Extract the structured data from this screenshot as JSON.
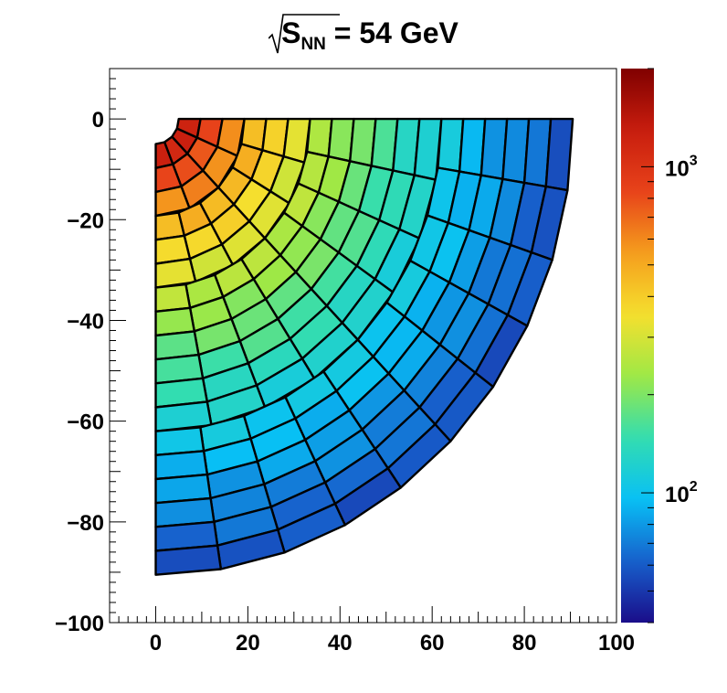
{
  "chart_data": {
    "type": "heatmap",
    "title": {
      "base": "S",
      "sub": "NN",
      "rest": " = 54 GeV"
    },
    "xlabel": "",
    "ylabel": "",
    "xlim": [
      -10,
      100
    ],
    "ylim": [
      -100,
      10
    ],
    "x_ticks": [
      0,
      20,
      40,
      60,
      80,
      100
    ],
    "y_ticks": [
      0,
      -20,
      -40,
      -60,
      -80,
      -100
    ],
    "x_tick_labels": [
      "0",
      "20",
      "40",
      "60",
      "80",
      "100"
    ],
    "y_tick_labels": [
      "0",
      "−20",
      "−40",
      "−60",
      "−80",
      "−100"
    ],
    "colorbar": {
      "scale": "log",
      "zmin": 40,
      "zmax": 2000,
      "major_ticks": [
        100,
        1000
      ],
      "major_labels": [
        {
          "base": "10",
          "exp": "2"
        },
        {
          "base": "10",
          "exp": "3"
        }
      ],
      "palette": [
        "#1a0d8a",
        "#1760cc",
        "#08c0f5",
        "#33ddb0",
        "#9ee846",
        "#f5e02e",
        "#f59e1d",
        "#e8431a",
        "#c81d0e",
        "#800000"
      ]
    },
    "detector": {
      "r_outer": 90.5,
      "r_inner_approx": 5,
      "rings": 18,
      "value_at_center": 2000,
      "value_at_edge": 55
    }
  }
}
